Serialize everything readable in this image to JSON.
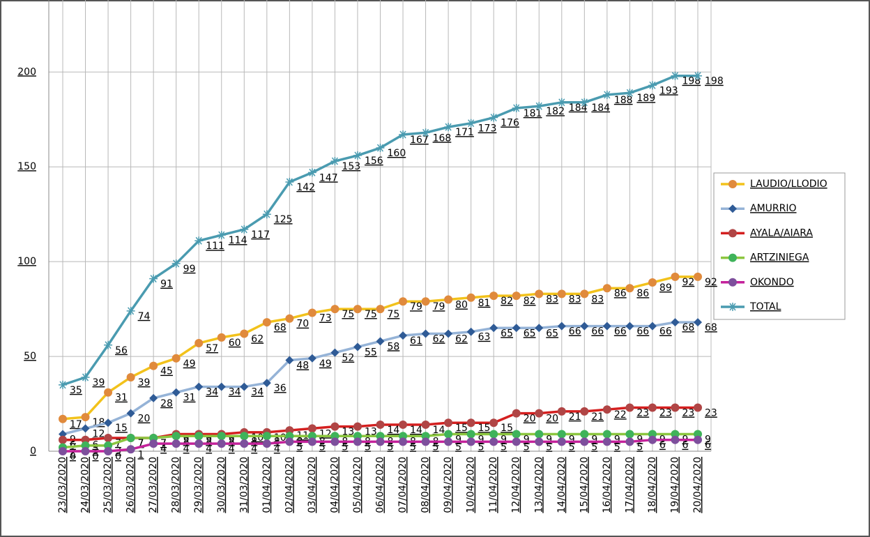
{
  "chart_data": {
    "type": "line",
    "categories": [
      "23/03/2020",
      "24/03/2020",
      "25/03/2020",
      "26/03/2020",
      "27/03/2020",
      "28/03/2020",
      "29/03/2020",
      "30/03/2020",
      "31/03/2020",
      "01/04/2020",
      "02/04/2020",
      "03/04/2020",
      "04/04/2020",
      "05/04/2020",
      "06/04/2020",
      "07/04/2020",
      "08/04/2020",
      "09/04/2020",
      "10/04/2020",
      "11/04/2020",
      "12/04/2020",
      "13/04/2020",
      "14/04/2020",
      "15/04/2020",
      "16/04/2020",
      "17/04/2020",
      "18/04/2020",
      "19/04/2020",
      "20/04/2020"
    ],
    "series": [
      {
        "name": "LAUDIO/LLODIO",
        "color": "#f2c21b",
        "marker_color": "#e08a3c",
        "marker": "circle",
        "values": [
          17,
          18,
          31,
          39,
          45,
          49,
          57,
          60,
          62,
          68,
          70,
          73,
          75,
          75,
          75,
          79,
          79,
          80,
          81,
          82,
          82,
          83,
          83,
          83,
          86,
          86,
          89,
          92,
          92
        ]
      },
      {
        "name": "AMURRIO",
        "color": "#95b3d7",
        "marker_color": "#2f5b96",
        "marker": "diamond",
        "values": [
          9,
          12,
          15,
          20,
          28,
          31,
          34,
          34,
          34,
          36,
          48,
          49,
          52,
          55,
          58,
          61,
          62,
          62,
          63,
          65,
          65,
          65,
          66,
          66,
          66,
          66,
          66,
          68,
          68
        ]
      },
      {
        "name": "AYALA/AIARA",
        "color": "#d41f1f",
        "marker_color": "#b04545",
        "marker": "circle",
        "values": [
          6,
          6,
          7,
          7,
          7,
          9,
          9,
          9,
          10,
          10,
          11,
          12,
          13,
          13,
          14,
          14,
          14,
          15,
          15,
          15,
          20,
          20,
          21,
          21,
          22,
          23,
          23,
          23,
          23
        ]
      },
      {
        "name": "ARTZINIEGA",
        "color": "#8cc63f",
        "marker_color": "#3fb35a",
        "marker": "circle",
        "values": [
          2,
          3,
          3,
          7,
          7,
          8,
          8,
          8,
          8,
          8,
          8,
          8,
          8,
          8,
          8,
          8,
          8,
          9,
          9,
          9,
          9,
          9,
          9,
          9,
          9,
          9,
          9,
          9,
          9
        ]
      },
      {
        "name": "OKONDO",
        "color": "#c4229b",
        "marker_color": "#7d4f9c",
        "marker": "circle",
        "values": [
          0,
          0,
          0,
          1,
          4,
          4,
          4,
          4,
          4,
          4,
          5,
          5,
          5,
          5,
          5,
          5,
          5,
          5,
          5,
          5,
          5,
          5,
          5,
          5,
          5,
          5,
          6,
          6,
          6
        ]
      },
      {
        "name": "TOTAL",
        "color": "#4a9bb0",
        "marker_color": "#4a9bb0",
        "marker": "asterisk",
        "values": [
          35,
          39,
          56,
          74,
          91,
          99,
          111,
          114,
          117,
          125,
          142,
          147,
          153,
          156,
          160,
          167,
          168,
          171,
          173,
          176,
          181,
          182,
          184,
          184,
          188,
          189,
          193,
          198,
          198
        ]
      }
    ],
    "ylim": [
      0,
      238
    ],
    "yticks": [
      0,
      50,
      100,
      150,
      200
    ],
    "grid": true,
    "legend": "right"
  }
}
